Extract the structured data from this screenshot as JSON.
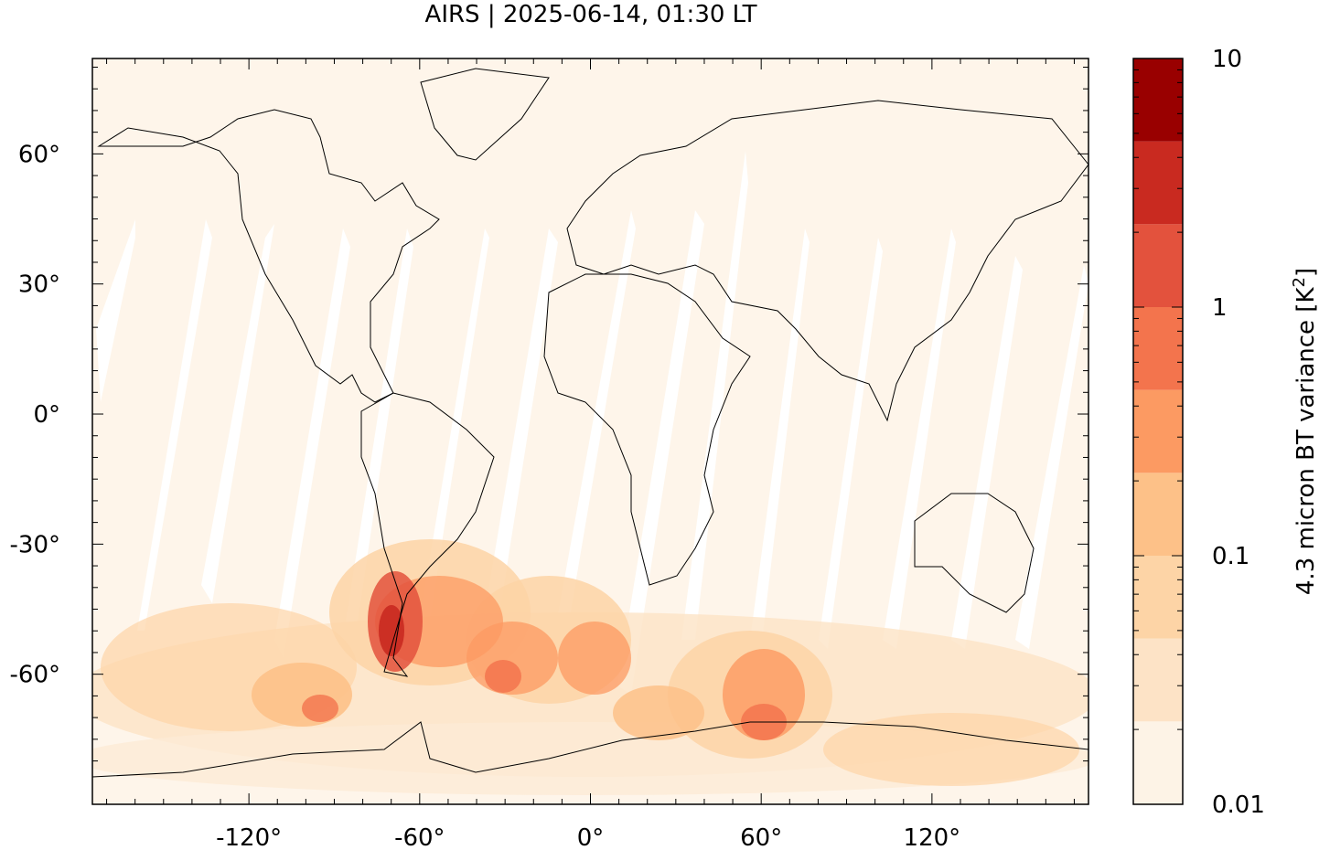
{
  "title": "AIRS | 2025-06-14, 01:30 LT",
  "map": {
    "lon_ticks": [
      {
        "value": -120,
        "label": "-120°"
      },
      {
        "value": -60,
        "label": "-60°"
      },
      {
        "value": 0,
        "label": "0°"
      },
      {
        "value": 60,
        "label": "60°"
      },
      {
        "value": 120,
        "label": "120°"
      }
    ],
    "lat_ticks": [
      {
        "value": 60,
        "label": "60°"
      },
      {
        "value": 30,
        "label": "30°"
      },
      {
        "value": 0,
        "label": "0°"
      },
      {
        "value": -30,
        "label": "-30°"
      },
      {
        "value": -60,
        "label": "-60°"
      }
    ],
    "background_color": "#fef5ea"
  },
  "colorbar": {
    "label": "4.3 micron BT variance [K²]",
    "label_main": "4.3 micron BT variance [K",
    "label_sup": "2",
    "label_end": "]",
    "scale": "log",
    "range": [
      0.01,
      10
    ],
    "tick_labels": [
      {
        "value": 10,
        "label": "10"
      },
      {
        "value": 1,
        "label": "1"
      },
      {
        "value": 0.1,
        "label": "0.1"
      },
      {
        "value": 0.01,
        "label": "0.01"
      }
    ],
    "colors": [
      "#fdf3e6",
      "#fde3c6",
      "#fdd4a6",
      "#fdc188",
      "#fc9a62",
      "#f3744d",
      "#e3523d",
      "#c92a20",
      "#990000"
    ]
  }
}
